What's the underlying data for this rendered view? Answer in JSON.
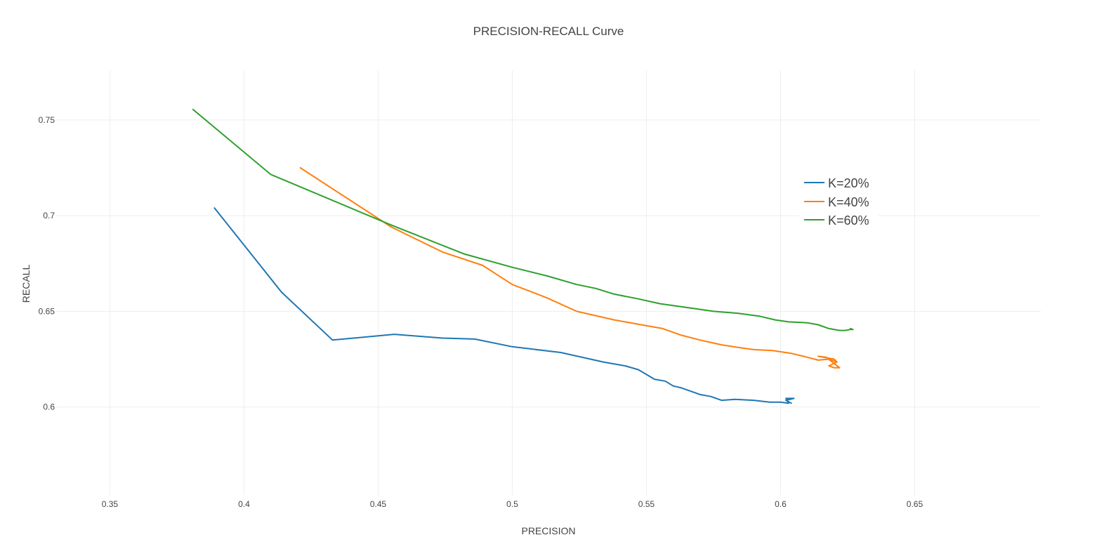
{
  "chart_data": {
    "type": "line",
    "title": "PRECISION-RECALL Curve",
    "xlabel": "PRECISION",
    "ylabel": "RECALL",
    "xlim": [
      0.33,
      0.697
    ],
    "ylim": [
      0.554,
      0.776
    ],
    "xticks": [
      0.35,
      0.4,
      0.45,
      0.5,
      0.55,
      0.6,
      0.65
    ],
    "yticks": [
      0.6,
      0.65,
      0.7,
      0.75
    ],
    "grid": true,
    "legend_position": "right",
    "series": [
      {
        "name": "K=20%",
        "color": "#1f77b4",
        "x": [
          0.389,
          0.414,
          0.433,
          0.456,
          0.474,
          0.486,
          0.5,
          0.518,
          0.534,
          0.542,
          0.547,
          0.553,
          0.557,
          0.56,
          0.563,
          0.567,
          0.57,
          0.574,
          0.578,
          0.583,
          0.59,
          0.596,
          0.6,
          0.603,
          0.602,
          0.605,
          0.602,
          0.604
        ],
        "y": [
          0.704,
          0.66,
          0.635,
          0.638,
          0.636,
          0.6355,
          0.6315,
          0.6285,
          0.6235,
          0.6215,
          0.6195,
          0.6145,
          0.6135,
          0.611,
          0.61,
          0.608,
          0.6065,
          0.6055,
          0.6035,
          0.604,
          0.6035,
          0.6025,
          0.6025,
          0.602,
          0.6045,
          0.6045,
          0.6035,
          0.602
        ]
      },
      {
        "name": "K=40%",
        "color": "#ff7f0e",
        "x": [
          0.421,
          0.455,
          0.474,
          0.489,
          0.5,
          0.513,
          0.524,
          0.538,
          0.548,
          0.556,
          0.563,
          0.57,
          0.578,
          0.585,
          0.59,
          0.597,
          0.604,
          0.61,
          0.614,
          0.618,
          0.621,
          0.62,
          0.614,
          0.617,
          0.622,
          0.62,
          0.618,
          0.621
        ],
        "y": [
          0.725,
          0.694,
          0.681,
          0.674,
          0.664,
          0.657,
          0.65,
          0.6455,
          0.643,
          0.641,
          0.6375,
          0.635,
          0.6325,
          0.631,
          0.63,
          0.6295,
          0.628,
          0.626,
          0.6245,
          0.625,
          0.6235,
          0.625,
          0.6265,
          0.626,
          0.6205,
          0.6205,
          0.6215,
          0.6235
        ]
      },
      {
        "name": "K=60%",
        "color": "#2ca02c",
        "x": [
          0.381,
          0.41,
          0.455,
          0.482,
          0.5,
          0.513,
          0.524,
          0.531,
          0.538,
          0.547,
          0.555,
          0.565,
          0.575,
          0.584,
          0.592,
          0.598,
          0.603,
          0.61,
          0.614,
          0.618,
          0.622,
          0.624,
          0.626,
          0.627,
          0.626
        ],
        "y": [
          0.7555,
          0.7215,
          0.695,
          0.68,
          0.673,
          0.6685,
          0.664,
          0.662,
          0.659,
          0.6565,
          0.654,
          0.652,
          0.65,
          0.649,
          0.6475,
          0.6455,
          0.6445,
          0.644,
          0.643,
          0.641,
          0.64,
          0.64,
          0.6405,
          0.6405,
          0.641
        ]
      }
    ]
  }
}
